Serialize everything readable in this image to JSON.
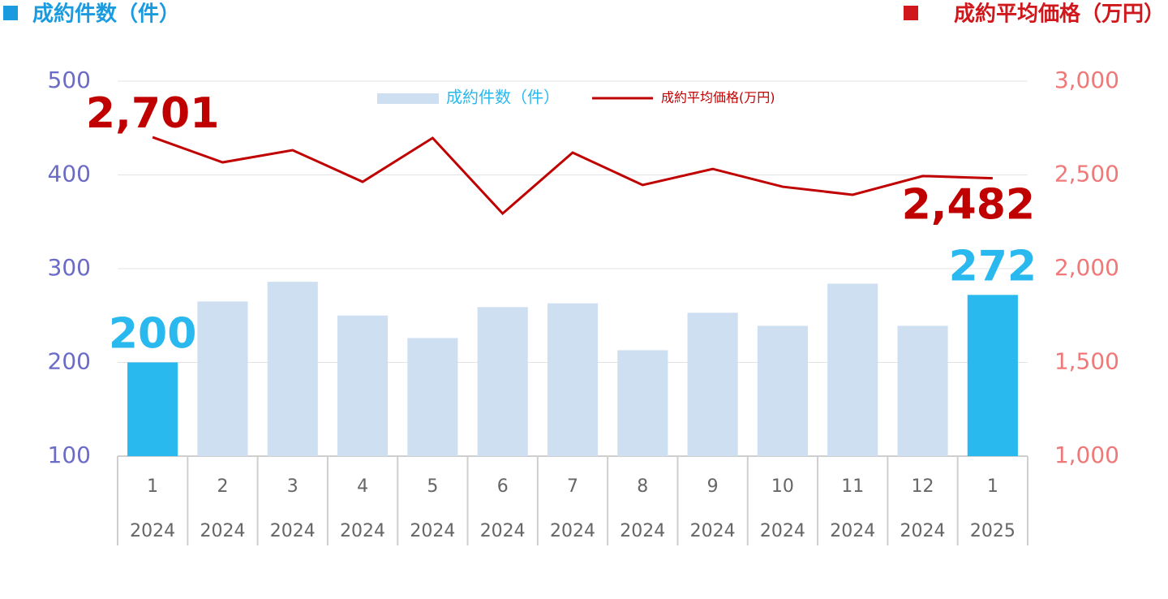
{
  "chart_data": {
    "type": "combo",
    "y_title": "成約件数（件）",
    "y_title_color": "#1a9be0",
    "y2_title": "成約平均価格（万円）",
    "y2_title_color": "#d0181c",
    "categories": [
      "1",
      "2",
      "3",
      "4",
      "5",
      "6",
      "7",
      "8",
      "9",
      "10",
      "11",
      "12",
      "1"
    ],
    "years": [
      "2024",
      "2024",
      "2024",
      "2024",
      "2024",
      "2024",
      "2024",
      "2024",
      "2024",
      "2024",
      "2024",
      "2024",
      "2025"
    ],
    "series": [
      {
        "name": "成約件数（件）",
        "type": "bar",
        "color": "#cfdff2",
        "colors": [
          "#29b9ee",
          "#cfdff2",
          "#cfdff2",
          "#cfdff2",
          "#cfdff2",
          "#cfdff2",
          "#cfdff2",
          "#cfdff2",
          "#cfdff2",
          "#cfdff2",
          "#cfdff2",
          "#cfdff2",
          "#29b9ee"
        ],
        "label_color": "#29b9ee",
        "legend_text_color": "#29b9ee",
        "values": [
          200,
          265,
          286,
          250,
          226,
          259,
          263,
          213,
          253,
          239,
          284,
          239,
          272
        ],
        "value_labels": [
          "200",
          null,
          null,
          null,
          null,
          null,
          null,
          null,
          null,
          null,
          null,
          null,
          "272"
        ]
      },
      {
        "name": "成約平均価格(万円)",
        "type": "line",
        "axis": "y2",
        "color": "#c00000",
        "label_color": "#c00000",
        "legend_text_color": "#c00000",
        "values": [
          2701,
          2567,
          2632,
          2463,
          2697,
          2294,
          2619,
          2446,
          2532,
          2437,
          2394,
          2494,
          2482
        ],
        "value_labels": [
          "2,701",
          null,
          null,
          null,
          null,
          null,
          null,
          null,
          null,
          null,
          null,
          null,
          "2,482"
        ]
      }
    ],
    "ylim": [
      100,
      500
    ],
    "yticks": [
      100,
      200,
      300,
      400,
      500
    ],
    "ytick_color": "#6b6bc8",
    "y2lim": [
      1000,
      3000
    ],
    "y2ticks": [
      {
        "value": 1000,
        "label": "1,000"
      },
      {
        "value": 1500,
        "label": "1,500"
      },
      {
        "value": 2000,
        "label": "2,000"
      },
      {
        "value": 2500,
        "label": "2,500"
      },
      {
        "value": 3000,
        "label": "3,000"
      }
    ],
    "y2tick_color": "#f07878",
    "grid": true
  }
}
